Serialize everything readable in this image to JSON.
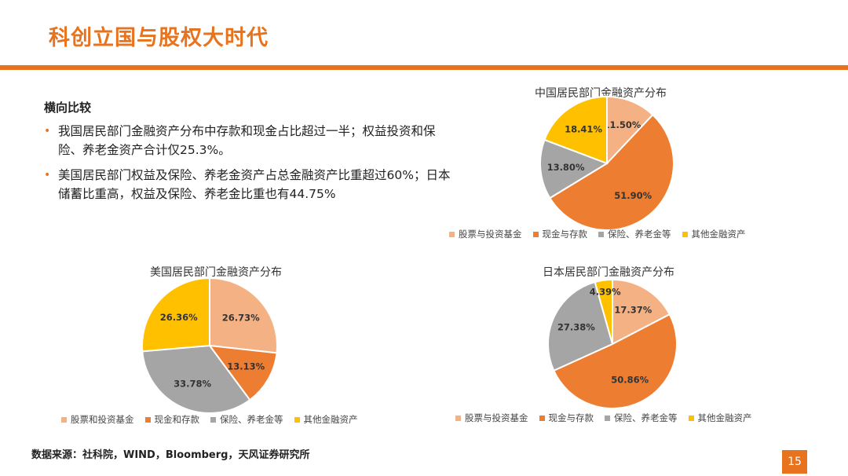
{
  "slide": {
    "title": "科创立国与股权大时代",
    "page_number": "15",
    "source": "数据来源：社科院，WIND，Bloomberg，天风证券研究所"
  },
  "text": {
    "heading": "横向比较",
    "bullets": [
      "我国居民部门金融资产分布中存款和现金占比超过一半；权益投资和保险、养老金资产合计仅25.3%。",
      "美国居民部门权益及保险、养老金资产占总金融资产比重超过60%；日本储蓄比重高，权益及保险、养老金比重也有44.75%"
    ],
    "bullet_marker": "•"
  },
  "colors": {
    "accent": "#E8731E",
    "slice_stocks": "#F4B183",
    "slice_cash": "#ED7D31",
    "slice_insurance": "#A5A5A5",
    "slice_other": "#FFC000"
  },
  "chart_data": [
    {
      "type": "pie",
      "title": "中国居民部门金融资产分布",
      "categories": [
        "股票与投资基金",
        "现金与存款",
        "保险、养老金等",
        "其他金融资产"
      ],
      "values": [
        11.5,
        51.9,
        13.8,
        18.41
      ],
      "labels": [
        "11.50%",
        "51.90%",
        "13.80%",
        "18.41%"
      ],
      "legend_position": "bottom"
    },
    {
      "type": "pie",
      "title": "美国居民部门金融资产分布",
      "categories": [
        "股票和投资基金",
        "现金和存款",
        "保险、养老金等",
        "其他金融资产"
      ],
      "values": [
        26.73,
        13.13,
        33.78,
        26.36
      ],
      "labels": [
        "26.73%",
        "13.13%",
        "33.78%",
        "26.36%"
      ],
      "legend_position": "bottom"
    },
    {
      "type": "pie",
      "title": "日本居民部门金融资产分布",
      "categories": [
        "股票与投资基金",
        "现金与存款",
        "保险、养老金等",
        "其他金融资产"
      ],
      "values": [
        17.37,
        50.86,
        27.38,
        4.39
      ],
      "labels": [
        "17.37%",
        "50.86%",
        "27.38%",
        "4.39%"
      ],
      "legend_position": "bottom"
    }
  ]
}
